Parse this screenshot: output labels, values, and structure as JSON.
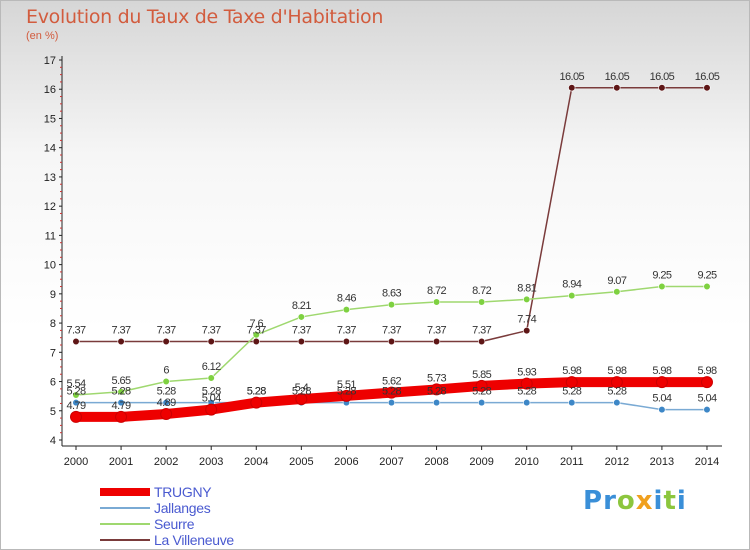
{
  "header": {
    "title": "Evolution du Taux de Taxe d'Habitation",
    "unit": "(en %)"
  },
  "logo": {
    "letters": [
      {
        "ch": "P",
        "color": "#3a8fd8"
      },
      {
        "ch": "r",
        "color": "#3a8fd8"
      },
      {
        "ch": "o",
        "color": "#8cc63e"
      },
      {
        "ch": "x",
        "color": "#f0a01e"
      },
      {
        "ch": "i",
        "color": "#3a8fd8"
      },
      {
        "ch": "t",
        "color": "#8cc63e"
      },
      {
        "ch": "i",
        "color": "#3a8fd8"
      }
    ]
  },
  "chart_data": {
    "type": "line",
    "x": [
      "2000",
      "2001",
      "2002",
      "2003",
      "2004",
      "2005",
      "2006",
      "2007",
      "2008",
      "2009",
      "2010",
      "2011",
      "2012",
      "2013",
      "2014"
    ],
    "ylim": [
      4,
      17
    ],
    "yticks": [
      4,
      5,
      6,
      7,
      8,
      9,
      10,
      11,
      12,
      13,
      14,
      15,
      16,
      17
    ],
    "grid": false,
    "legend_position": "bottom-left",
    "series": [
      {
        "name": "TRUGNY",
        "color": "#ee0000",
        "point_color": "#ee0000",
        "values": [
          4.79,
          4.79,
          4.89,
          5.04,
          5.28,
          5.4,
          5.51,
          5.62,
          5.73,
          5.85,
          5.93,
          5.98,
          5.98,
          5.98,
          5.98
        ],
        "labels": [
          "4.79",
          "4.79",
          "4.89",
          "5.04",
          "5.28",
          "5.4",
          "5.51",
          "5.62",
          "5.73",
          "5.85",
          "5.93",
          "5.98",
          "5.98",
          "5.98",
          "5.98"
        ]
      },
      {
        "name": "Jallanges",
        "color": "#7aaad4",
        "point_color": "#3d87c7",
        "values": [
          5.28,
          5.28,
          5.28,
          5.28,
          5.28,
          5.28,
          5.28,
          5.28,
          5.28,
          5.28,
          5.28,
          5.28,
          5.28,
          5.04,
          5.04
        ],
        "labels": [
          "5.28",
          "5.28",
          "5.28",
          "5.28",
          "5.28",
          "5.28",
          "5.28",
          "5.28",
          "5.28",
          "5.28",
          "5.28",
          "5.28",
          "5.28",
          "5.04",
          "5.04"
        ]
      },
      {
        "name": "Seurre",
        "color": "#9fd86f",
        "point_color": "#7ed140",
        "values": [
          5.54,
          5.65,
          6.0,
          6.12,
          7.6,
          8.21,
          8.46,
          8.63,
          8.72,
          8.72,
          8.81,
          8.94,
          9.07,
          9.25,
          9.25
        ],
        "labels": [
          "5.54",
          "5.65",
          "6",
          "6.12",
          "7.6",
          "8.21",
          "8.46",
          "8.63",
          "8.72",
          "8.72",
          "8.81",
          "8.94",
          "9.07",
          "9.25",
          "9.25"
        ]
      },
      {
        "name": "La Villeneuve",
        "color": "#7a3b3b",
        "point_color": "#5e1616",
        "values": [
          7.37,
          7.37,
          7.37,
          7.37,
          7.37,
          7.37,
          7.37,
          7.37,
          7.37,
          7.37,
          7.74,
          16.05,
          16.05,
          16.05,
          16.05
        ],
        "labels": [
          "7.37",
          "7.37",
          "7.37",
          "7.37",
          "7.37",
          "7.37",
          "7.37",
          "7.37",
          "7.37",
          "7.37",
          "7.74",
          "16.05",
          "16.05",
          "16.05",
          "16.05"
        ]
      }
    ]
  }
}
